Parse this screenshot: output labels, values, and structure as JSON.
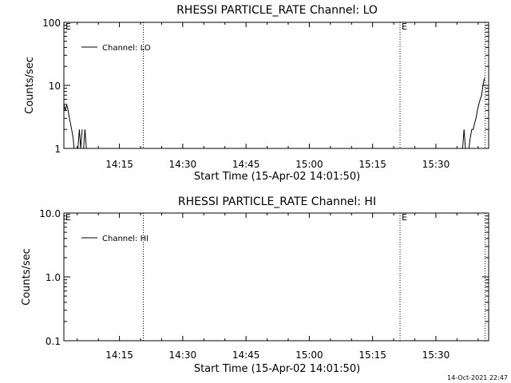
{
  "footer": {
    "timestamp": "14-Oct-2021 22:47"
  },
  "chart_data": [
    {
      "type": "line",
      "title": "RHESSI PARTICLE_RATE Channel: LO",
      "xlabel": "Start Time (15-Apr-02 14:01:50)",
      "ylabel": "Counts/sec",
      "yscale": "log",
      "xlim": [
        "14:01:50",
        "15:42:30"
      ],
      "ylim": [
        1,
        100
      ],
      "xticks": [
        "14:15",
        "14:30",
        "14:45",
        "15:00",
        "15:15",
        "15:30"
      ],
      "yticks": [
        "1",
        "10",
        "100"
      ],
      "legend": {
        "label": "Channel: LO",
        "placement": "top-left"
      },
      "event_markers": [
        {
          "time": "14:01:50",
          "label": "E"
        },
        {
          "time": "14:20:40",
          "label": ""
        },
        {
          "time": "15:21:30",
          "label": "E"
        },
        {
          "time": "15:41:40",
          "label": ""
        }
      ],
      "series": [
        {
          "segments": [
            {
              "x": [
                "14:01:50",
                "14:02:10",
                "14:02:30",
                "14:02:50",
                "14:03:10",
                "14:03:40",
                "14:04:00",
                "14:04:15"
              ],
              "y": [
                5,
                4,
                5,
                4,
                3,
                2,
                1.5,
                1
              ]
            },
            {
              "x": [
                "14:05:10",
                "14:05:30",
                "14:05:50",
                "14:06:10"
              ],
              "y": [
                1,
                2,
                1,
                2
              ]
            },
            {
              "x": [
                "14:06:30",
                "14:06:50",
                "14:07:10"
              ],
              "y": [
                1,
                2,
                1
              ]
            },
            {
              "x": [
                "15:36:20",
                "15:36:40",
                "15:37:00"
              ],
              "y": [
                1,
                2,
                1
              ]
            },
            {
              "x": [
                "15:37:50",
                "15:38:10",
                "15:38:30",
                "15:38:50",
                "15:39:10",
                "15:39:30",
                "15:39:50",
                "15:40:10",
                "15:40:30",
                "15:40:50",
                "15:41:10",
                "15:41:30"
              ],
              "y": [
                1,
                1.5,
                2,
                2,
                2.5,
                3,
                4,
                5,
                6,
                7,
                10,
                13
              ]
            }
          ]
        }
      ]
    },
    {
      "type": "line",
      "title": "RHESSI PARTICLE_RATE Channel: HI",
      "xlabel": "Start Time (15-Apr-02 14:01:50)",
      "ylabel": "Counts/sec",
      "yscale": "log",
      "xlim": [
        "14:01:50",
        "15:42:30"
      ],
      "ylim": [
        0.1,
        10
      ],
      "xticks": [
        "14:15",
        "14:30",
        "14:45",
        "15:00",
        "15:15",
        "15:30"
      ],
      "yticks": [
        "0.1",
        "1.0",
        "10.0"
      ],
      "legend": {
        "label": "Channel: HI",
        "placement": "top-left"
      },
      "event_markers": [
        {
          "time": "14:01:50",
          "label": "E"
        },
        {
          "time": "14:20:40",
          "label": ""
        },
        {
          "time": "15:21:30",
          "label": "E"
        },
        {
          "time": "15:41:40",
          "label": ""
        }
      ],
      "series": [
        {
          "segments": []
        }
      ]
    }
  ]
}
